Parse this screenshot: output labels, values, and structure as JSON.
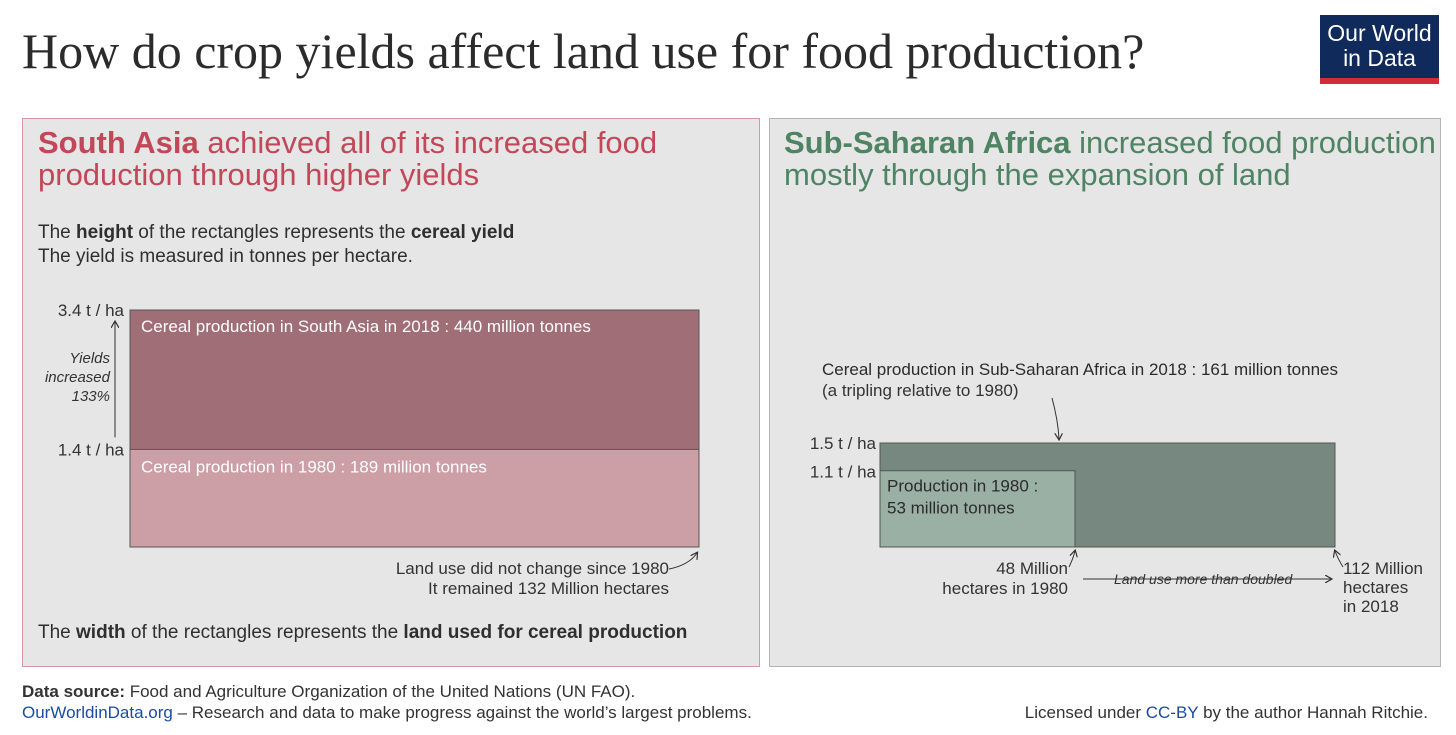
{
  "title": "How do crop yields affect land use for food production?",
  "logo": {
    "line1": "Our World",
    "line2": "in Data"
  },
  "colors": {
    "south_asia_text": "#c24758",
    "south_asia_2018": "#a06e77",
    "south_asia_1980": "#cc9ea6",
    "africa_text": "#4e8463",
    "africa_2018": "#76887f",
    "africa_1980": "#9ab0a4",
    "logo_bg": "#0f2a5b",
    "logo_bar": "#d42b3a",
    "link": "#1b4ba3"
  },
  "left_panel": {
    "headline_bold": "South Asia",
    "headline_rest_line1": " achieved all of its increased food",
    "headline_line2": "production through higher yields",
    "height_note": {
      "pre": "The ",
      "b1": "height",
      "mid": " of the rectangles represents the ",
      "b2": "cereal yield"
    },
    "height_note2": "The yield is measured in tonnes per hectare.",
    "width_note": {
      "pre": "The ",
      "b1": "width",
      "mid": " of the rectangles represents the ",
      "b2": "land used for cereal production"
    },
    "yield_annotation": [
      "Yields",
      "increased",
      "133%"
    ],
    "land_note_line1": "Land use did not change since 1980",
    "land_note_line2": "It remained 132 Million hectares"
  },
  "right_panel": {
    "headline_bold": "Sub-Saharan Africa",
    "headline_rest_line1": " increased food production",
    "headline_line2": "mostly through the expansion of land",
    "label_1980_end": [
      "48 Million",
      "hectares in 1980"
    ],
    "label_2018_end": [
      "112 Million",
      "hectares",
      "in 2018"
    ],
    "land_arrow_label": "Land use more than doubled",
    "note_2018_line2": "(a tripling relative to 1980)"
  },
  "chart_data": [
    {
      "type": "area",
      "region": "South Asia",
      "series": [
        {
          "year": 1980,
          "yield_t_per_ha": 1.4,
          "land_million_ha": 132,
          "production_million_t": 189,
          "label": "Cereal production in 1980 : 189 million tonnes",
          "tick": "1.4 t / ha"
        },
        {
          "year": 2018,
          "yield_t_per_ha": 3.4,
          "land_million_ha": 132,
          "production_million_t": 440,
          "label": "Cereal production in South Asia in 2018 : 440 million tonnes",
          "tick": "3.4 t / ha"
        }
      ],
      "yield_max": 3.4,
      "land_max": 132
    },
    {
      "type": "area",
      "region": "Sub-Saharan Africa",
      "series": [
        {
          "year": 1980,
          "yield_t_per_ha": 1.1,
          "land_million_ha": 48,
          "production_million_t": 53,
          "label_line1": "Production in 1980 :",
          "label_line2": "53 million tonnes",
          "tick": "1.1  t / ha"
        },
        {
          "year": 2018,
          "yield_t_per_ha": 1.5,
          "land_million_ha": 112,
          "production_million_t": 161,
          "label": "Cereal production in Sub-Saharan Africa in 2018 : 161 million tonnes",
          "tick": "1.5 t / ha"
        }
      ],
      "yield_max": 1.5,
      "land_max": 112
    }
  ],
  "footer": {
    "source_bold": "Data source:",
    "source_rest": " Food and Agriculture Organization of the United Nations (UN FAO).",
    "site": "OurWorldinData.org",
    "tagline": " – Research and data to make progress against the world’s largest problems.",
    "license_pre": "Licensed under ",
    "license_link": "CC-BY",
    "license_post": " by the author Hannah Ritchie."
  }
}
